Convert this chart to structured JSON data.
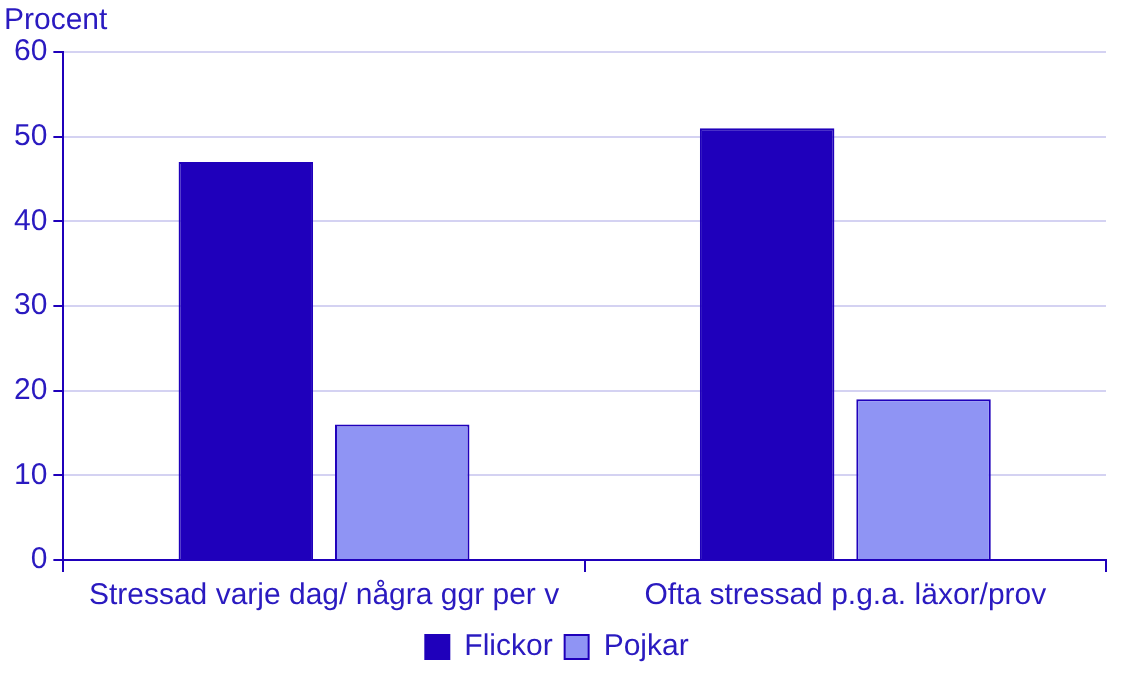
{
  "chart_data": {
    "type": "bar",
    "ylabel": "Procent",
    "categories": [
      "Stressad varje dag/ några ggr per v",
      "Ofta stressad p.g.a. läxor/prov"
    ],
    "series": [
      {
        "name": "Flickor",
        "color": "#1f00bb",
        "values": [
          47,
          51
        ]
      },
      {
        "name": "Pojkar",
        "color": "#8f94f4",
        "values": [
          16,
          19
        ]
      }
    ],
    "ylim": [
      0,
      60
    ],
    "yticks": [
      0,
      10,
      20,
      30,
      40,
      50,
      60
    ],
    "grid": "y",
    "legend": "bottom"
  }
}
